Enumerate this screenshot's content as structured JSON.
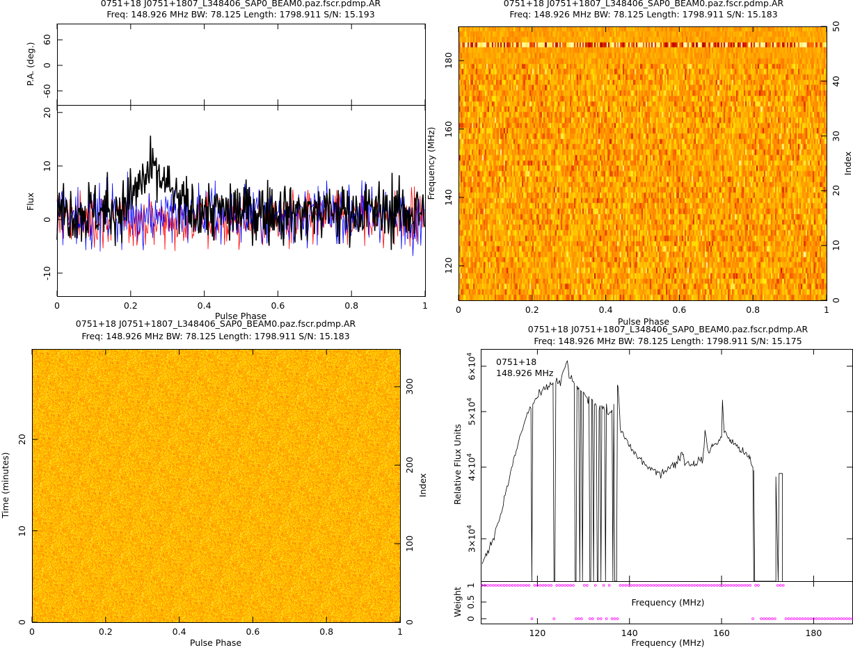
{
  "chart_data": [
    {
      "type": "line",
      "panel": "profile",
      "title": "0751+18 J0751+1807_L348406_SAP0_BEAM0.paz.fscr.pdmp.AR",
      "subtitle": "Freq: 148.926 MHz BW: 78.125 Length: 1798.911 S/N: 15.193",
      "xlabel": "Pulse Phase",
      "ylabel": "Flux",
      "pa_ylabel": "P.A. (deg.)",
      "xlim": [
        0,
        1
      ],
      "ylim": [
        -14.3,
        21.4
      ],
      "pa_ylim": [
        -93,
        98
      ],
      "xticks": [
        "0",
        "0.2",
        "0.4",
        "0.6",
        "0.8",
        "1"
      ],
      "yticks": [
        "-10",
        "0",
        "10",
        "20"
      ],
      "pa_yticks": [
        "-60",
        "0",
        "60"
      ],
      "series": [
        {
          "name": "Total intensity",
          "color": "#000000",
          "mean": 1.5,
          "sigma": 4.5,
          "peak_phase": 0.26,
          "peak_value": 19
        },
        {
          "name": "Linear",
          "color": "#ff0000",
          "mean": 0,
          "sigma": 4
        },
        {
          "name": "Circular",
          "color": "#0000ff",
          "mean": 1,
          "sigma": 4.5
        }
      ]
    },
    {
      "type": "heatmap",
      "panel": "frequency-phase",
      "title": "0751+18 J0751+1807_L348406_SAP0_BEAM0.paz.fscr.pdmp.AR",
      "subtitle": "Freq: 148.926 MHz BW: 78.125 Length: 1798.911 S/N: 15.183",
      "xlabel": "Pulse Phase",
      "ylabel": "Frequency (MHz)",
      "y2label": "Index",
      "xlim": [
        0,
        1
      ],
      "ylim": [
        109.9,
        190
      ],
      "y2lim": [
        0,
        50
      ],
      "xticks": [
        "0",
        "0.2",
        "0.4",
        "0.6",
        "0.8",
        "1"
      ],
      "yticks": [
        "120",
        "140",
        "160",
        "180"
      ],
      "y2ticks": [
        "0",
        "10",
        "20",
        "30",
        "40",
        "50"
      ]
    },
    {
      "type": "heatmap",
      "panel": "time-phase",
      "title": "0751+18 J0751+1807_L348406_SAP0_BEAM0.paz.fscr.pdmp.AR",
      "subtitle": "Freq: 148.926 MHz BW: 78.125 Length: 1798.911 S/N: 15.183",
      "xlabel": "Pulse Phase",
      "ylabel": "Time (minutes)",
      "y2label": "Index",
      "xlim": [
        0,
        1
      ],
      "ylim": [
        0,
        29.9
      ],
      "y2lim": [
        0,
        348
      ],
      "xticks": [
        "0",
        "0.2",
        "0.4",
        "0.6",
        "0.8",
        "1"
      ],
      "yticks": [
        "0",
        "10",
        "20"
      ],
      "y2ticks": [
        "0",
        "100",
        "200",
        "300"
      ]
    },
    {
      "type": "line",
      "panel": "bandpass",
      "title": "0751+18 J0751+1807_L348406_SAP0_BEAM0.paz.fscr.pdmp.AR",
      "subtitle": "Freq: 148.926 MHz BW: 78.125 Length: 1798.911 S/N: 15.175",
      "annotation": [
        "0751+18",
        "148.926 MHz"
      ],
      "xlabel": "Frequency (MHz)",
      "ylabel": "Relative Flux Units",
      "weight_label": "Weight",
      "weight_xlabel": "Frequency (MHz)",
      "xlim": [
        107.7,
        188.4
      ],
      "ylim": [
        25300,
        64300
      ],
      "yscale": "log",
      "xticks": [
        "120",
        "140",
        "160",
        "180"
      ],
      "yticks": [
        {
          "v": 30000,
          "m": "3",
          "e": "4"
        },
        {
          "v": 40000,
          "m": "4",
          "e": "4"
        },
        {
          "v": 50000,
          "m": "5",
          "e": "4"
        },
        {
          "v": 60000,
          "m": "6",
          "e": "4"
        }
      ],
      "weight_yticks": [
        "0",
        "0.5",
        "1"
      ],
      "spectrum": [
        [
          108,
          27000
        ],
        [
          110,
          29500
        ],
        [
          112,
          33000
        ],
        [
          114,
          38500
        ],
        [
          116,
          44500
        ],
        [
          118,
          50000
        ],
        [
          120,
          53000
        ],
        [
          122,
          55000
        ],
        [
          124,
          56500
        ],
        [
          125,
          56000
        ],
        [
          126.5,
          61500
        ],
        [
          127,
          57000
        ],
        [
          128,
          56000
        ],
        [
          130,
          53500
        ],
        [
          132,
          52000
        ],
        [
          134,
          51000
        ],
        [
          136,
          49500
        ],
        [
          137.5,
          55500
        ],
        [
          138,
          46500
        ],
        [
          140,
          43500
        ],
        [
          142,
          41500
        ],
        [
          144,
          40000
        ],
        [
          146,
          39000
        ],
        [
          148,
          39600
        ],
        [
          150,
          40500
        ],
        [
          151.5,
          42500
        ],
        [
          152,
          40800
        ],
        [
          154,
          40500
        ],
        [
          156,
          41500
        ],
        [
          156.5,
          46500
        ],
        [
          157,
          42500
        ],
        [
          158,
          43500
        ],
        [
          160,
          45000
        ],
        [
          160.2,
          52000
        ],
        [
          160.6,
          46000
        ],
        [
          162,
          44500
        ],
        [
          164,
          43000
        ],
        [
          166,
          41500
        ],
        [
          167,
          39500
        ]
      ],
      "tail": [
        [
          171.8,
          38500
        ],
        [
          173.2,
          39000
        ]
      ],
      "zapped": [
        118.8,
        123.7,
        128.3,
        129.2,
        129.8,
        131.5,
        132.2,
        133.1,
        133.8,
        134.8,
        136.4,
        136.8,
        137.1,
        167.0,
        168.3
      ],
      "zapped_ranges": [
        [
          168.2,
          171.6
        ],
        [
          173.5,
          188.4
        ]
      ],
      "weight_color": "#ff00ff"
    }
  ]
}
